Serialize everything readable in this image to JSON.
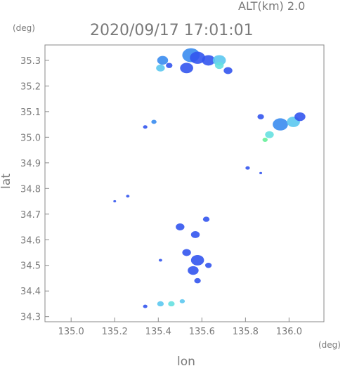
{
  "header": {
    "altitude_label": "ALT(km) 2.0",
    "timestamp": "2020/09/17 17:01:01"
  },
  "axes": {
    "x_unit": "(deg)",
    "y_unit": "(deg)",
    "x_label": "lon",
    "y_label": "lat"
  },
  "colors": {
    "axis": "#8a8a8a",
    "text": "#7a7a7a",
    "echo_blue": "#3355ee",
    "echo_mid": "#3a8cf0",
    "echo_light": "#5cc8f0",
    "echo_cyan": "#66e0e0",
    "echo_green": "#66ee99"
  },
  "chart_data": {
    "type": "heatmap",
    "title": "2020/09/17 17:01:01",
    "xlabel": "lon",
    "ylabel": "lat",
    "xlim": [
      134.88,
      136.16
    ],
    "ylim": [
      34.28,
      35.36
    ],
    "xticks": [
      "135.0",
      "135.2",
      "135.4",
      "135.6",
      "135.8",
      "136.0"
    ],
    "yticks": [
      "34.3",
      "34.4",
      "34.5",
      "34.6",
      "34.7",
      "34.8",
      "34.9",
      "35.0",
      "35.1",
      "35.2",
      "35.3"
    ],
    "echo_cells": [
      {
        "lon": 135.42,
        "lat": 35.3,
        "r": 0.025,
        "level": "mid"
      },
      {
        "lon": 135.41,
        "lat": 35.27,
        "r": 0.02,
        "level": "light"
      },
      {
        "lon": 135.45,
        "lat": 35.28,
        "r": 0.015,
        "level": "blue"
      },
      {
        "lon": 135.55,
        "lat": 35.32,
        "r": 0.04,
        "level": "mid"
      },
      {
        "lon": 135.58,
        "lat": 35.31,
        "r": 0.035,
        "level": "blue"
      },
      {
        "lon": 135.53,
        "lat": 35.27,
        "r": 0.03,
        "level": "blue"
      },
      {
        "lon": 135.63,
        "lat": 35.3,
        "r": 0.03,
        "level": "blue"
      },
      {
        "lon": 135.68,
        "lat": 35.3,
        "r": 0.03,
        "level": "light"
      },
      {
        "lon": 135.68,
        "lat": 35.28,
        "r": 0.02,
        "level": "cyan"
      },
      {
        "lon": 135.72,
        "lat": 35.26,
        "r": 0.02,
        "level": "blue"
      },
      {
        "lon": 135.38,
        "lat": 35.06,
        "r": 0.012,
        "level": "mid"
      },
      {
        "lon": 135.34,
        "lat": 35.04,
        "r": 0.01,
        "level": "blue"
      },
      {
        "lon": 135.87,
        "lat": 35.08,
        "r": 0.015,
        "level": "blue"
      },
      {
        "lon": 135.96,
        "lat": 35.05,
        "r": 0.035,
        "level": "mid"
      },
      {
        "lon": 136.02,
        "lat": 35.06,
        "r": 0.03,
        "level": "light"
      },
      {
        "lon": 136.05,
        "lat": 35.08,
        "r": 0.025,
        "level": "blue"
      },
      {
        "lon": 135.91,
        "lat": 35.01,
        "r": 0.02,
        "level": "cyan"
      },
      {
        "lon": 135.89,
        "lat": 34.99,
        "r": 0.012,
        "level": "green"
      },
      {
        "lon": 135.81,
        "lat": 34.88,
        "r": 0.01,
        "level": "blue"
      },
      {
        "lon": 135.87,
        "lat": 34.86,
        "r": 0.006,
        "level": "blue"
      },
      {
        "lon": 135.26,
        "lat": 34.77,
        "r": 0.008,
        "level": "blue"
      },
      {
        "lon": 135.2,
        "lat": 34.75,
        "r": 0.006,
        "level": "blue"
      },
      {
        "lon": 135.5,
        "lat": 34.65,
        "r": 0.02,
        "level": "blue"
      },
      {
        "lon": 135.57,
        "lat": 34.62,
        "r": 0.02,
        "level": "blue"
      },
      {
        "lon": 135.62,
        "lat": 34.68,
        "r": 0.015,
        "level": "blue"
      },
      {
        "lon": 135.53,
        "lat": 34.55,
        "r": 0.02,
        "level": "blue"
      },
      {
        "lon": 135.58,
        "lat": 34.52,
        "r": 0.03,
        "level": "blue"
      },
      {
        "lon": 135.56,
        "lat": 34.48,
        "r": 0.025,
        "level": "blue"
      },
      {
        "lon": 135.63,
        "lat": 34.5,
        "r": 0.015,
        "level": "blue"
      },
      {
        "lon": 135.58,
        "lat": 34.44,
        "r": 0.015,
        "level": "blue"
      },
      {
        "lon": 135.41,
        "lat": 34.52,
        "r": 0.008,
        "level": "blue"
      },
      {
        "lon": 135.34,
        "lat": 34.34,
        "r": 0.01,
        "level": "blue"
      },
      {
        "lon": 135.41,
        "lat": 34.35,
        "r": 0.015,
        "level": "light"
      },
      {
        "lon": 135.46,
        "lat": 34.35,
        "r": 0.015,
        "level": "cyan"
      },
      {
        "lon": 135.51,
        "lat": 34.36,
        "r": 0.012,
        "level": "light"
      }
    ]
  }
}
